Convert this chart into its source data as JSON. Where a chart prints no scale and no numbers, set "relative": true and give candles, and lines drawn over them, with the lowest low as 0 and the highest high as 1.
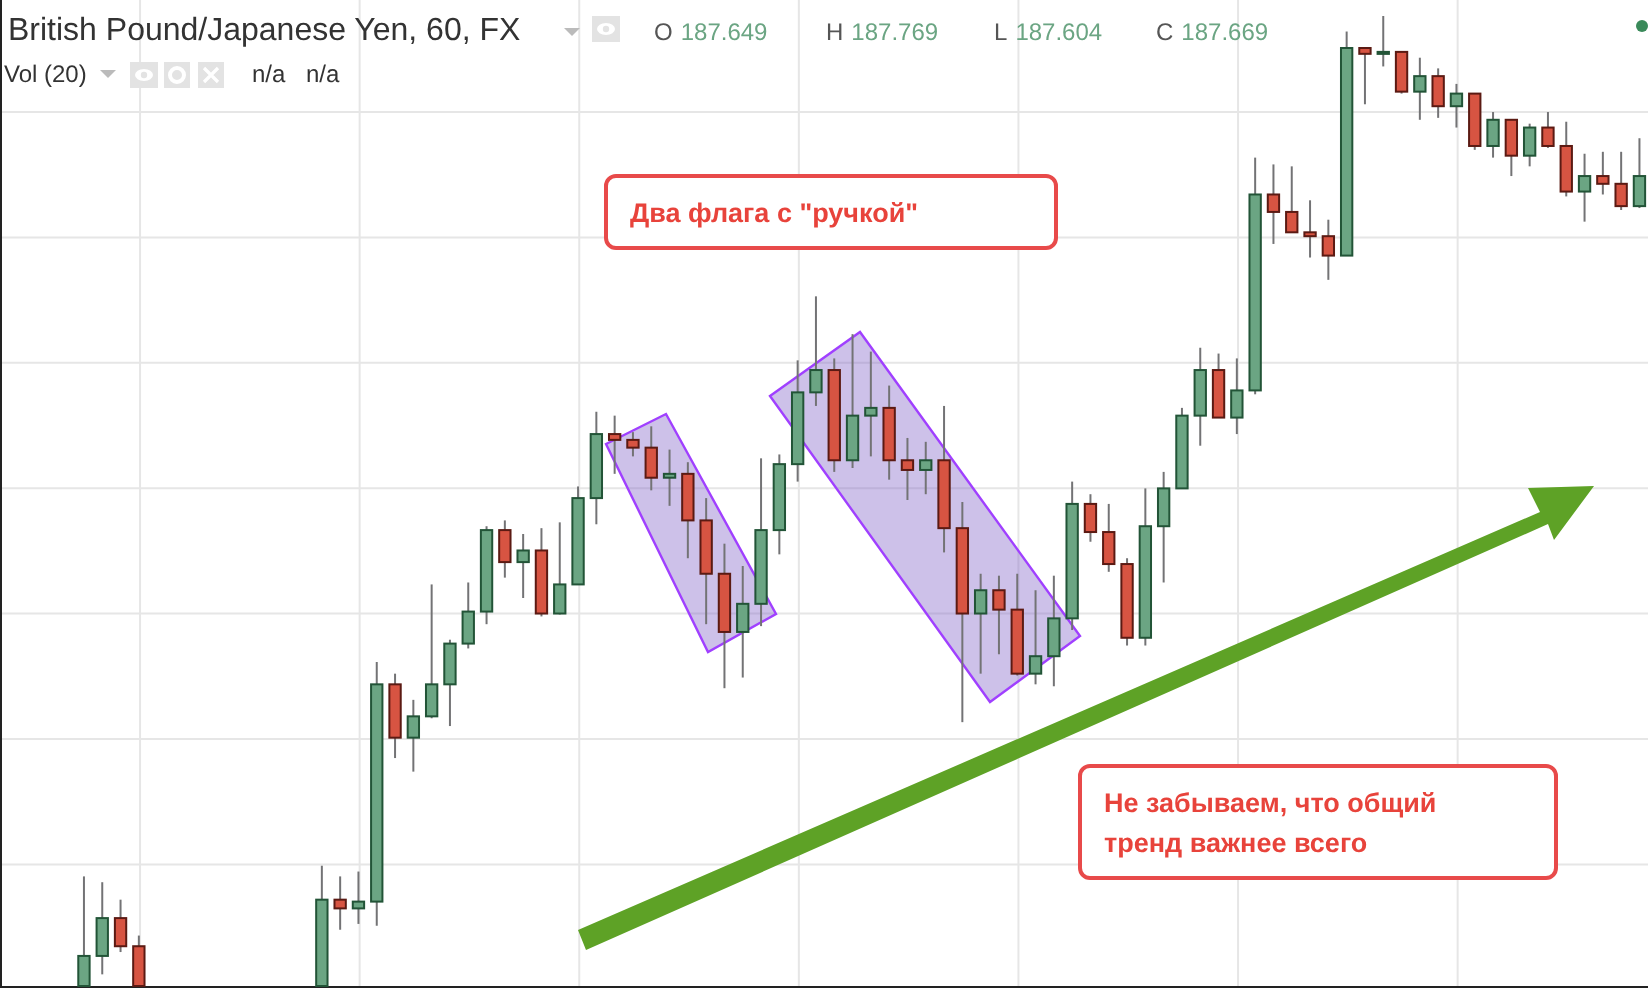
{
  "chart_data": {
    "type": "candlestick",
    "title": "British Pound/Japanese Yen, 60, FX",
    "relative": true,
    "grid": true,
    "annotations": [
      "O 187.649",
      "H 187.769",
      "L 187.604",
      "C 187.669",
      "Vol (20)",
      "n/a",
      "n/a",
      "Два флага с \"ручкой\"",
      "Не забываем, что общий\nтренд важнее всего"
    ],
    "categories": [
      null,
      null,
      null,
      null,
      null,
      null,
      null,
      null,
      null,
      null,
      null,
      null,
      null,
      null,
      null,
      null,
      null,
      null,
      null,
      null,
      null,
      null,
      null,
      null,
      null,
      null,
      null,
      null,
      null,
      null,
      null,
      null,
      null,
      null,
      null,
      null,
      null,
      null,
      null,
      null,
      null,
      null,
      null,
      null,
      null,
      null,
      null,
      null,
      null,
      null,
      null,
      null,
      null,
      null,
      null,
      null,
      null,
      null,
      null,
      null,
      null,
      null,
      null,
      null,
      null,
      null,
      null,
      null,
      null,
      null,
      null,
      null,
      null,
      null,
      null,
      null,
      null,
      null,
      null,
      null,
      null,
      null,
      null,
      null,
      null,
      null
    ],
    "ohlc": [
      [
        0,
        0.113,
        0,
        0.031
      ],
      [
        0.031,
        0.107,
        0.012,
        0.07
      ],
      [
        0.07,
        0.089,
        0.035,
        0.041
      ],
      [
        0.041,
        0.052,
        0,
        0
      ],
      null,
      null,
      null,
      null,
      null,
      null,
      null,
      null,
      null,
      [
        0,
        0.124,
        0,
        0.089
      ],
      [
        0.089,
        0.113,
        0.058,
        0.08
      ],
      [
        0.08,
        0.118,
        0.064,
        0.087
      ],
      [
        0.087,
        0.334,
        0.062,
        0.311
      ],
      [
        0.311,
        0.322,
        0.235,
        0.256
      ],
      [
        0.256,
        0.295,
        0.221,
        0.278
      ],
      [
        0.278,
        0.414,
        0.276,
        0.311
      ],
      [
        0.311,
        0.357,
        0.268,
        0.353
      ],
      [
        0.353,
        0.416,
        0.348,
        0.386
      ],
      [
        0.386,
        0.474,
        0.373,
        0.47
      ],
      [
        0.47,
        0.48,
        0.421,
        0.437
      ],
      [
        0.437,
        0.466,
        0.4,
        0.449
      ],
      [
        0.449,
        0.472,
        0.381,
        0.384
      ],
      [
        0.384,
        0.478,
        0.383,
        0.414
      ],
      [
        0.414,
        0.515,
        0.414,
        0.503
      ],
      [
        0.503,
        0.592,
        0.476,
        0.569
      ],
      [
        0.569,
        0.588,
        0.528,
        0.563
      ],
      [
        0.563,
        0.571,
        0.546,
        0.555
      ],
      [
        0.555,
        0.577,
        0.511,
        0.524
      ],
      [
        0.524,
        0.553,
        0.495,
        0.528
      ],
      [
        0.528,
        0.54,
        0.441,
        0.48
      ],
      [
        0.48,
        0.503,
        0.373,
        0.425
      ],
      [
        0.425,
        0.456,
        0.307,
        0.365
      ],
      [
        0.365,
        0.433,
        0.318,
        0.394
      ],
      [
        0.394,
        0.544,
        0.371,
        0.47
      ],
      [
        0.47,
        0.548,
        0.445,
        0.538
      ],
      [
        0.538,
        0.645,
        0.52,
        0.612
      ],
      [
        0.612,
        0.711,
        0.598,
        0.635
      ],
      [
        0.635,
        0.647,
        0.53,
        0.542
      ],
      [
        0.542,
        0.672,
        0.534,
        0.588
      ],
      [
        0.588,
        0.654,
        0.546,
        0.596
      ],
      [
        0.596,
        0.619,
        0.522,
        0.542
      ],
      [
        0.542,
        0.565,
        0.501,
        0.532
      ],
      [
        0.532,
        0.561,
        0.507,
        0.542
      ],
      [
        0.542,
        0.598,
        0.447,
        0.472
      ],
      [
        0.472,
        0.499,
        0.272,
        0.384
      ],
      [
        0.384,
        0.425,
        0.322,
        0.408
      ],
      [
        0.408,
        0.423,
        0.342,
        0.388
      ],
      [
        0.388,
        0.425,
        0.32,
        0.322
      ],
      [
        0.322,
        0.408,
        0.311,
        0.34
      ],
      [
        0.34,
        0.423,
        0.309,
        0.379
      ],
      [
        0.379,
        0.52,
        0.367,
        0.497
      ],
      [
        0.497,
        0.507,
        0.458,
        0.468
      ],
      [
        0.468,
        0.497,
        0.427,
        0.435
      ],
      [
        0.435,
        0.441,
        0.351,
        0.359
      ],
      [
        0.359,
        0.513,
        0.351,
        0.474
      ],
      [
        0.474,
        0.53,
        0.416,
        0.513
      ],
      [
        0.513,
        0.596,
        0.513,
        0.588
      ],
      [
        0.588,
        0.658,
        0.557,
        0.635
      ],
      [
        0.635,
        0.652,
        0.586,
        0.586
      ],
      [
        0.586,
        0.647,
        0.569,
        0.614
      ],
      [
        0.614,
        0.854,
        0.61,
        0.816
      ],
      [
        0.816,
        0.847,
        0.765,
        0.798
      ],
      [
        0.798,
        0.845,
        0.777,
        0.777
      ],
      [
        0.777,
        0.81,
        0.751,
        0.773
      ],
      [
        0.773,
        0.79,
        0.728,
        0.753
      ],
      [
        0.753,
        0.984,
        0.753,
        0.967
      ],
      [
        0.967,
        0.967,
        0.909,
        0.961
      ],
      [
        0.961,
        1,
        0.948,
        0.963
      ],
      [
        0.963,
        0.963,
        0.92,
        0.922
      ],
      [
        0.922,
        0.957,
        0.893,
        0.938
      ],
      [
        0.938,
        0.946,
        0.895,
        0.907
      ],
      [
        0.907,
        0.93,
        0.885,
        0.92
      ],
      [
        0.92,
        0.92,
        0.862,
        0.866
      ],
      [
        0.866,
        0.901,
        0.854,
        0.893
      ],
      [
        0.893,
        0.893,
        0.835,
        0.856
      ],
      [
        0.856,
        0.889,
        0.845,
        0.885
      ],
      [
        0.885,
        0.901,
        0.864,
        0.866
      ],
      [
        0.866,
        0.891,
        0.814,
        0.819
      ],
      [
        0.819,
        0.858,
        0.788,
        0.835
      ],
      [
        0.835,
        0.86,
        0.816,
        0.827
      ],
      [
        0.827,
        0.86,
        0.8,
        0.804
      ],
      [
        0.804,
        0.874,
        0.802,
        0.835
      ]
    ]
  }
}
